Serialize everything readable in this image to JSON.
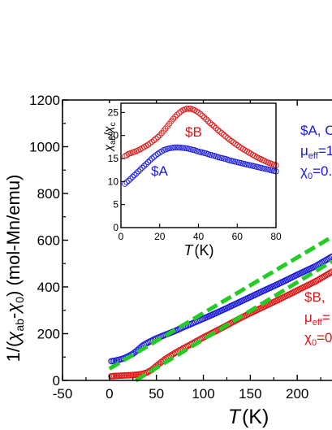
{
  "chart_data": [
    {
      "type": "scatter",
      "xlabel": {
        "italic": "T",
        "unit": "(K)"
      },
      "ylabel": {
        "pre": "1/(",
        "chi": "χ",
        "sub": "ab",
        "mid": "-",
        "chi2": "χ",
        "sub2": "0",
        "post": ") (mol-Mn/emu)"
      },
      "xlim": [
        -50,
        237
      ],
      "ylim": [
        0,
        1200
      ],
      "xticks": [
        -50,
        0,
        50,
        100,
        150,
        200
      ],
      "yticks": [
        0,
        200,
        400,
        600,
        800,
        1000,
        1200
      ],
      "colors": {
        "A": "#1a1adc",
        "B": "#e01414",
        "fit": "#22cc22"
      },
      "series": [
        {
          "key": "A",
          "marker": "open-circle",
          "points": [
            [
              2,
              82
            ],
            [
              5,
              84
            ],
            [
              10,
              88
            ],
            [
              15,
              94
            ],
            [
              20,
              103
            ],
            [
              25,
              114
            ],
            [
              30,
              130
            ],
            [
              35,
              148
            ],
            [
              40,
              160
            ],
            [
              50,
              180
            ],
            [
              60,
              196
            ],
            [
              70,
              212
            ],
            [
              80,
              230
            ],
            [
              90,
              247
            ],
            [
              100,
              264
            ],
            [
              120,
              300
            ],
            [
              140,
              338
            ],
            [
              160,
              376
            ],
            [
              180,
              413
            ],
            [
              200,
              452
            ],
            [
              220,
              490
            ],
            [
              237,
              530
            ]
          ]
        },
        {
          "key": "B",
          "marker": "open-circle",
          "points": [
            [
              2,
              18
            ],
            [
              5,
              19
            ],
            [
              10,
              20
            ],
            [
              15,
              21
            ],
            [
              20,
              22
            ],
            [
              25,
              23
            ],
            [
              30,
              25
            ],
            [
              35,
              28
            ],
            [
              40,
              34
            ],
            [
              45,
              45
            ],
            [
              50,
              62
            ],
            [
              55,
              78
            ],
            [
              60,
              93
            ],
            [
              70,
              118
            ],
            [
              80,
              140
            ],
            [
              90,
              162
            ],
            [
              100,
              184
            ],
            [
              120,
              225
            ],
            [
              140,
              268
            ],
            [
              160,
              307
            ],
            [
              180,
              345
            ],
            [
              200,
              385
            ],
            [
              220,
              425
            ],
            [
              237,
              465
            ]
          ]
        }
      ],
      "fits": [
        {
          "key": "A",
          "points": [
            [
              0,
              50
            ],
            [
              237,
              614
            ]
          ]
        },
        {
          "key": "B",
          "points": [
            [
              28,
              0
            ],
            [
              237,
              510
            ]
          ]
        }
      ],
      "annotations": [
        {
          "key": "A",
          "lines": [
            {
              "base": "$A, C"
            },
            {
              "base": "μ",
              "sub": "eff",
              "rest": "=1"
            },
            {
              "base": "χ",
              "sub": "0",
              "rest": "=0."
            }
          ]
        },
        {
          "key": "B",
          "lines": [
            {
              "base": "$B,"
            },
            {
              "base": "μ",
              "sub": "eff",
              "rest": "="
            },
            {
              "base": "χ",
              "sub": "0",
              "rest": "=0"
            }
          ]
        }
      ]
    },
    {
      "type": "scatter",
      "role": "inset",
      "xlabel": {
        "italic": "T",
        "unit": "(K)"
      },
      "ylabel": {
        "chi": "χ",
        "sub": "ab",
        "slash": "/",
        "chi2": "χ",
        "sub2": "c"
      },
      "xlim": [
        0,
        80
      ],
      "ylim": [
        0,
        27
      ],
      "xticks": [
        0,
        20,
        40,
        60,
        80
      ],
      "yticks": [
        0,
        5,
        10,
        15,
        20,
        25
      ],
      "series": [
        {
          "key": "B",
          "label": "$B",
          "marker": "open-circle",
          "points": [
            [
              2,
              15.5
            ],
            [
              4,
              16
            ],
            [
              6,
              16.3
            ],
            [
              8,
              16.6
            ],
            [
              10,
              17
            ],
            [
              12,
              17.5
            ],
            [
              14,
              18
            ],
            [
              16,
              18.6
            ],
            [
              18,
              19.3
            ],
            [
              20,
              20
            ],
            [
              22,
              21
            ],
            [
              24,
              22
            ],
            [
              26,
              23.1
            ],
            [
              28,
              24.1
            ],
            [
              30,
              24.9
            ],
            [
              32,
              25.5
            ],
            [
              34,
              25.8
            ],
            [
              36,
              25.8
            ],
            [
              38,
              25.5
            ],
            [
              40,
              25
            ],
            [
              42,
              24.3
            ],
            [
              44,
              23.5
            ],
            [
              46,
              22.7
            ],
            [
              48,
              22
            ],
            [
              50,
              21.2
            ],
            [
              52,
              20.5
            ],
            [
              54,
              19.8
            ],
            [
              56,
              19.1
            ],
            [
              58,
              18.5
            ],
            [
              60,
              17.9
            ],
            [
              62,
              17.3
            ],
            [
              64,
              16.8
            ],
            [
              66,
              16.3
            ],
            [
              68,
              15.8
            ],
            [
              70,
              15.3
            ],
            [
              72,
              14.9
            ],
            [
              74,
              14.5
            ],
            [
              76,
              14.1
            ],
            [
              78,
              13.8
            ],
            [
              80,
              13.5
            ]
          ]
        },
        {
          "key": "A",
          "label": "$A",
          "marker": "open-circle",
          "points": [
            [
              2,
              9.5
            ],
            [
              4,
              10.2
            ],
            [
              6,
              11
            ],
            [
              8,
              11.8
            ],
            [
              10,
              12.6
            ],
            [
              12,
              13.4
            ],
            [
              14,
              14.2
            ],
            [
              16,
              15
            ],
            [
              18,
              15.7
            ],
            [
              20,
              16.3
            ],
            [
              22,
              16.8
            ],
            [
              24,
              17.1
            ],
            [
              26,
              17.3
            ],
            [
              28,
              17.4
            ],
            [
              30,
              17.4
            ],
            [
              32,
              17.3
            ],
            [
              34,
              17.2
            ],
            [
              36,
              17
            ],
            [
              38,
              16.8
            ],
            [
              40,
              16.5
            ],
            [
              42,
              16.3
            ],
            [
              44,
              16.1
            ],
            [
              46,
              15.8
            ],
            [
              48,
              15.6
            ],
            [
              50,
              15.3
            ],
            [
              52,
              15.1
            ],
            [
              54,
              14.9
            ],
            [
              56,
              14.6
            ],
            [
              58,
              14.4
            ],
            [
              60,
              14.2
            ],
            [
              62,
              14
            ],
            [
              64,
              13.8
            ],
            [
              66,
              13.6
            ],
            [
              68,
              13.4
            ],
            [
              70,
              13.2
            ],
            [
              72,
              13
            ],
            [
              74,
              12.8
            ],
            [
              76,
              12.6
            ],
            [
              78,
              12.4
            ],
            [
              80,
              12.2
            ]
          ]
        }
      ]
    }
  ]
}
